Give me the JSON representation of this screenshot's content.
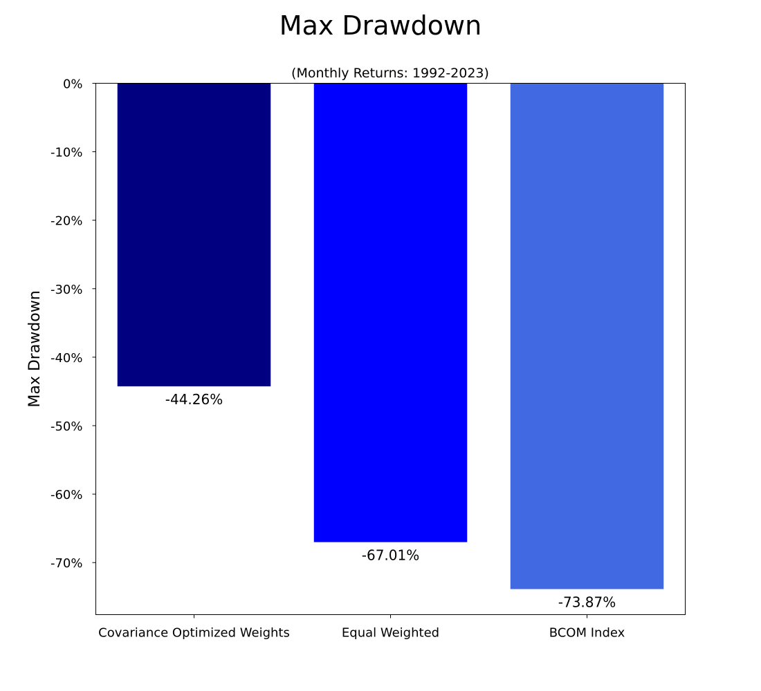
{
  "chart_data": {
    "type": "bar",
    "title": "Max Drawdown",
    "subtitle": "(Monthly Returns: 1992-2023)",
    "xlabel": "",
    "ylabel": "Max Drawdown",
    "categories": [
      "Covariance Optimized Weights",
      "Equal Weighted",
      "BCOM Index"
    ],
    "values": [
      -44.26,
      -67.01,
      -73.87
    ],
    "value_labels": [
      "-44.26%",
      "-67.01%",
      "-73.87%"
    ],
    "colors": [
      "#000080",
      "#0000ff",
      "#4169e1"
    ],
    "ylim": [
      -77.6,
      0
    ],
    "yticks": [
      0,
      -10,
      -20,
      -30,
      -40,
      -50,
      -60,
      -70
    ],
    "ytick_labels": [
      "0%",
      "-10%",
      "-20%",
      "-30%",
      "-40%",
      "-50%",
      "-60%",
      "-70%"
    ],
    "grid": false,
    "legend": "none"
  }
}
